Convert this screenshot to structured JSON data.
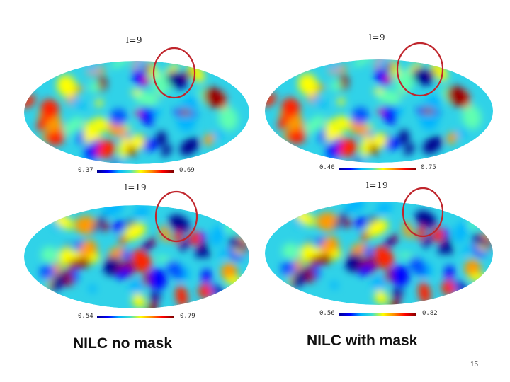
{
  "panels": [
    {
      "id": "nilc-nomask-l9",
      "title": "l=9",
      "scale_min": "0.37",
      "scale_max": "0.69",
      "seed": 11,
      "highlighted_region": "blue cold spot, upper right"
    },
    {
      "id": "nilc-mask-l9",
      "title": "l=9",
      "scale_min": "0.40",
      "scale_max": "0.75",
      "seed": 11,
      "highlighted_region": "blue cold spot, upper right"
    },
    {
      "id": "nilc-nomask-l19",
      "title": "l=19",
      "scale_min": "0.54",
      "scale_max": "0.79",
      "seed": 27,
      "highlighted_region": "blue cold spot, upper right"
    },
    {
      "id": "nilc-mask-l19",
      "title": "l=19",
      "scale_min": "0.56",
      "scale_max": "0.82",
      "seed": 27,
      "highlighted_region": "blue cold spot, upper right"
    }
  ],
  "captions": {
    "left": "NILC no mask",
    "right": "NILC with mask"
  },
  "colors": {
    "highlight_circle": "#c0262d",
    "colormap": [
      "#00008f",
      "#0000ff",
      "#00b4ff",
      "#3fe0d0",
      "#ffff00",
      "#ff8c00",
      "#ff0000",
      "#7f0000"
    ]
  },
  "page_number": "15"
}
